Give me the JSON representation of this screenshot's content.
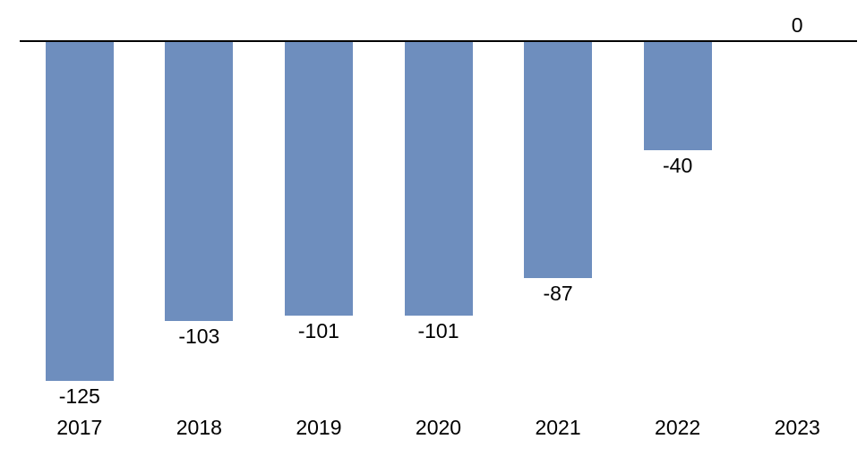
{
  "chart_data": {
    "type": "bar",
    "categories": [
      "2017",
      "2018",
      "2019",
      "2020",
      "2021",
      "2022",
      "2023"
    ],
    "values": [
      -125,
      -103,
      -101,
      -101,
      -87,
      -40,
      0
    ],
    "data_labels": [
      "-125",
      "-103",
      "-101",
      "-101",
      "-87",
      "-40",
      "0"
    ],
    "title": "",
    "xlabel": "",
    "ylabel": "",
    "ylim": [
      -130,
      0
    ],
    "grid": false,
    "legend_position": "none",
    "colors": {
      "bar": "#6E8EBE",
      "axis_line": "#000000",
      "label_text": "#000000",
      "background": "#FFFFFF"
    }
  }
}
